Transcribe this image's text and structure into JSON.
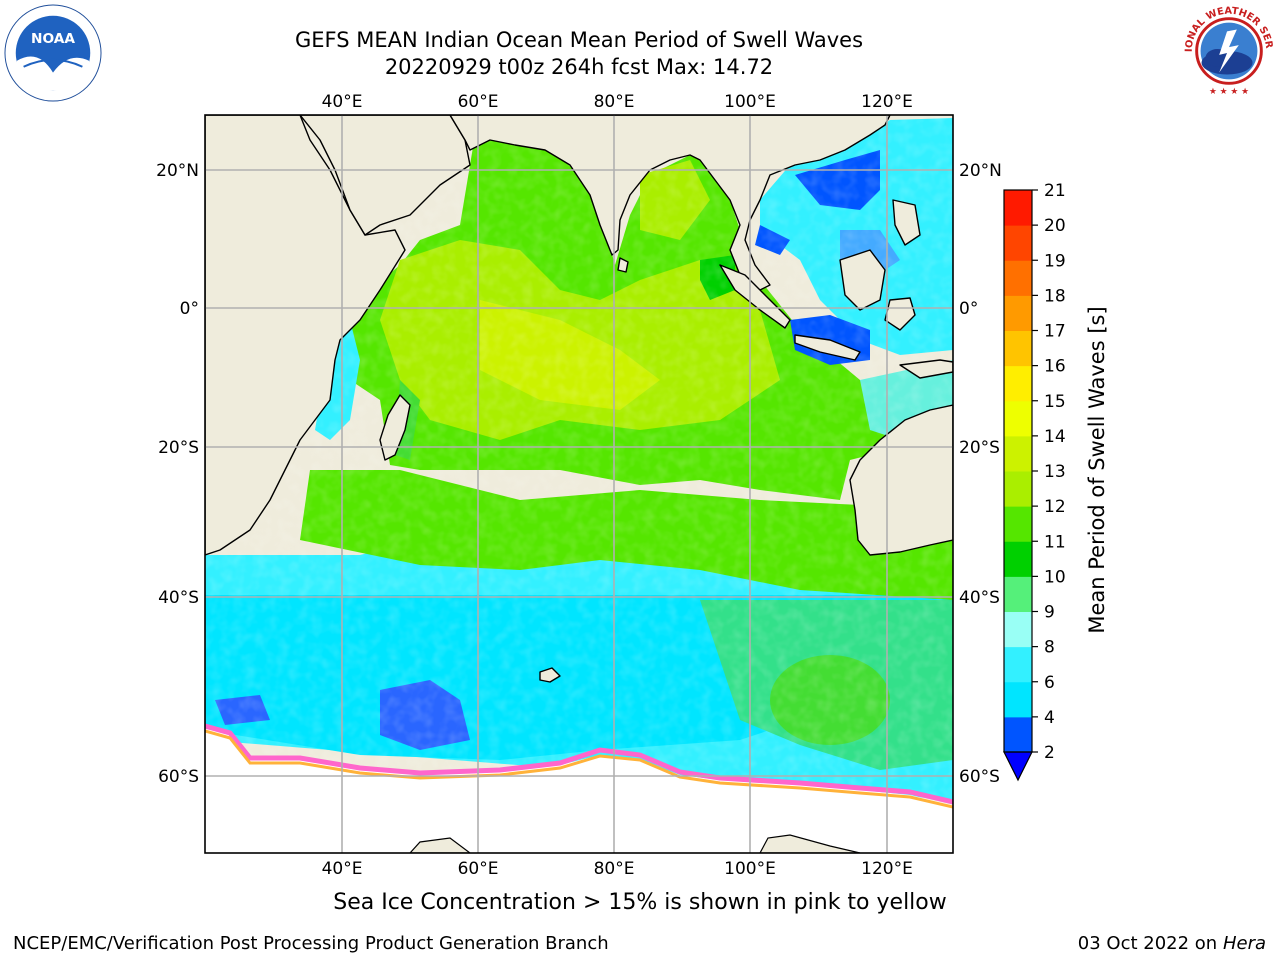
{
  "title": {
    "line1": "GEFS MEAN Indian Ocean Mean Period of Swell Waves",
    "line2": "20220929 t00z 264h fcst   Max: 14.72"
  },
  "map": {
    "lon_labels": [
      "40°E",
      "60°E",
      "80°E",
      "100°E",
      "120°E"
    ],
    "lat_labels": [
      "20°N",
      "0°",
      "20°S",
      "40°S",
      "60°S"
    ],
    "colors": {
      "land": "#efecdc",
      "ice": "#ff66cc",
      "grid": "#b0b0b0"
    }
  },
  "colorbar": {
    "label": "Mean Period of Swell Waves [s]",
    "ticks": [
      "2",
      "4",
      "6",
      "8",
      "9",
      "10",
      "11",
      "12",
      "13",
      "14",
      "15",
      "16",
      "17",
      "18",
      "19",
      "20",
      "21"
    ],
    "colors": [
      "#0055ff",
      "#00e5ff",
      "#33f0ff",
      "#99fff5",
      "#55f07a",
      "#00d000",
      "#55e600",
      "#aaee00",
      "#ccf200",
      "#eeff00",
      "#ffee00",
      "#ffc400",
      "#ff9a00",
      "#ff7000",
      "#ff4500",
      "#ff1a00"
    ],
    "extend_color": "#0000ff"
  },
  "footer": {
    "ice_note": "Sea Ice Concentration > 15% is shown in pink to yellow",
    "credit": "NCEP/EMC/Verification Post Processing Product Generation Branch",
    "date_prefix": "03 Oct 2022 on",
    "machine": "Hera"
  },
  "logos": {
    "noaa_text": "NOAA",
    "nws_text": "NATIONAL WEATHER SERVICE"
  }
}
